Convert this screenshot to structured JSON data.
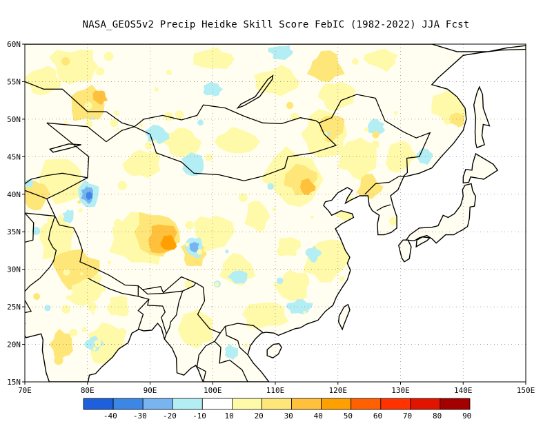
{
  "title": "NASA_GEOS5v2 Precip Heidke Skill Score FebIC (1982-2022) JJA Fcst",
  "map": {
    "lon_labels": [
      "70E",
      "80E",
      "90E",
      "100E",
      "110E",
      "120E",
      "130E",
      "140E",
      "150E"
    ],
    "lat_labels": [
      "60N",
      "55N",
      "50N",
      "45N",
      "40N",
      "35N",
      "30N",
      "25N",
      "20N",
      "15N"
    ],
    "lon_range": [
      70,
      150
    ],
    "lat_range": [
      15,
      60
    ],
    "grid": "dotted",
    "ocean_color": "#ffffff",
    "coastline_color": "#000000"
  },
  "colorbar": {
    "labels": [
      "-40",
      "-30",
      "-20",
      "-10",
      "10",
      "20",
      "30",
      "40",
      "50",
      "60",
      "70",
      "80",
      "90"
    ],
    "colors": [
      "#1e5fdc",
      "#3c87e6",
      "#78b4f0",
      "#b4eef5",
      "#ffffff",
      "#fffaaa",
      "#ffe678",
      "#ffc03c",
      "#ffa000",
      "#ff6000",
      "#ff3200",
      "#e11400",
      "#a50000"
    ]
  },
  "field": {
    "colors": {
      "neg": "#b4eef5",
      "neg2": "#78b4f0",
      "neg3": "#3c87e6",
      "pos1": "#fffaaa",
      "pos2": "#ffe678",
      "pos3": "#ffc03c",
      "pos4": "#ffa000"
    }
  }
}
